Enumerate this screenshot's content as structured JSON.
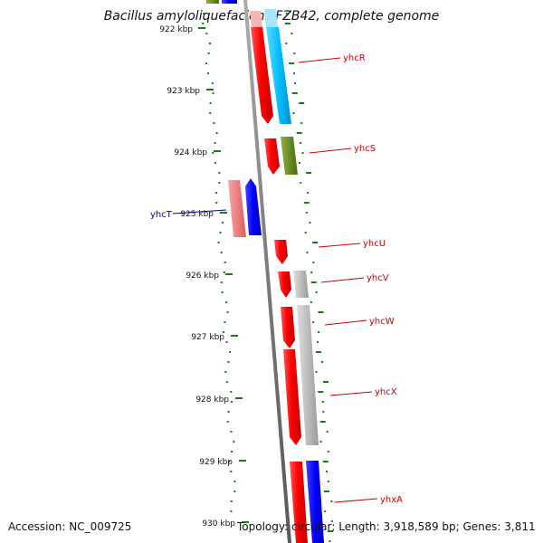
{
  "title": "Bacillus amyloliquefaciens FZB42, complete genome",
  "accession": "Accession: NC_009725",
  "summary": "Topology: circular; Length: 3,918,589 bp; Genes: 3,811",
  "colors": {
    "backbone": "#8a8a8a",
    "gc_ticks": "#1a7a1a",
    "label_forward": "#cc0000",
    "label_reverse": "#00008b",
    "gene_red": "#ff0000",
    "gene_pink": "#f08080",
    "gene_blue": "#0000ff",
    "gene_cyan": "#00bfff",
    "gene_olive": "#6b8e23",
    "gene_gray": "#bdbdbd"
  },
  "scale_labels": [
    "922 kbp",
    "923 kbp",
    "924 kbp",
    "925 kbp",
    "926 kbp",
    "927 kbp",
    "928 kbp",
    "929 kbp",
    "930 kbp"
  ],
  "gene_labels": [
    {
      "text": "yhcR",
      "strand": "forward"
    },
    {
      "text": "yhcS",
      "strand": "forward"
    },
    {
      "text": "yhcT",
      "strand": "reverse"
    },
    {
      "text": "yhcU",
      "strand": "forward"
    },
    {
      "text": "yhcV",
      "strand": "forward"
    },
    {
      "text": "yhcW",
      "strand": "forward"
    },
    {
      "text": "yhcX",
      "strand": "forward"
    },
    {
      "text": "yhxA",
      "strand": "forward"
    }
  ]
}
